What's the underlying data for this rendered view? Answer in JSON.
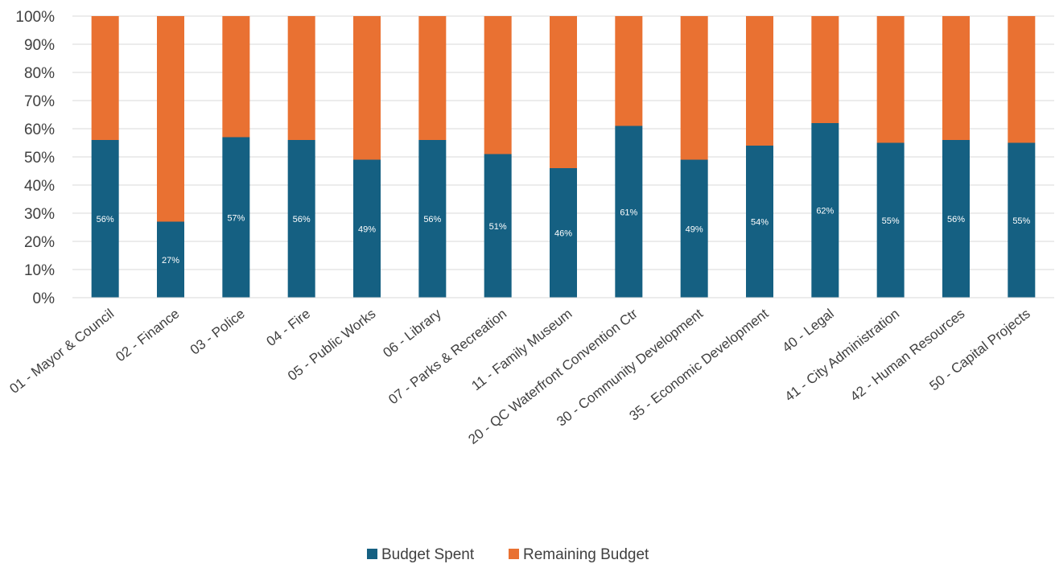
{
  "chart_data": {
    "type": "bar",
    "stacked": "percent",
    "categories": [
      "01 - Mayor & Council",
      "02 - Finance",
      "03 - Police",
      "04 - Fire",
      "05 - Public Works",
      "06 - Library",
      "07 - Parks & Recreation",
      "11 - Family Museum",
      "20 - QC Waterfront Convention Ctr",
      "30 - Community Development",
      "35 - Economic Development",
      "40 - Legal",
      "41 - City Administration",
      "42 - Human Resources",
      "50 - Capital Projects"
    ],
    "series": [
      {
        "name": "Budget Spent",
        "color": "#156082",
        "values": [
          56,
          27,
          57,
          56,
          49,
          56,
          51,
          46,
          61,
          49,
          54,
          62,
          55,
          56,
          55
        ],
        "labels": [
          "56%",
          "27%",
          "57%",
          "56%",
          "49%",
          "56%",
          "51%",
          "46%",
          "61%",
          "49%",
          "54%",
          "62%",
          "55%",
          "56%",
          "55%"
        ]
      },
      {
        "name": "Remaining Budget",
        "color": "#E97132",
        "values": [
          44,
          73,
          43,
          44,
          51,
          44,
          49,
          54,
          39,
          51,
          46,
          38,
          45,
          44,
          45
        ]
      }
    ],
    "yticks": [
      "0%",
      "10%",
      "20%",
      "30%",
      "40%",
      "50%",
      "60%",
      "70%",
      "80%",
      "90%",
      "100%"
    ],
    "ylim": [
      0,
      100
    ],
    "grid": true,
    "legend_position": "bottom",
    "title": "",
    "xlabel": "",
    "ylabel": ""
  }
}
